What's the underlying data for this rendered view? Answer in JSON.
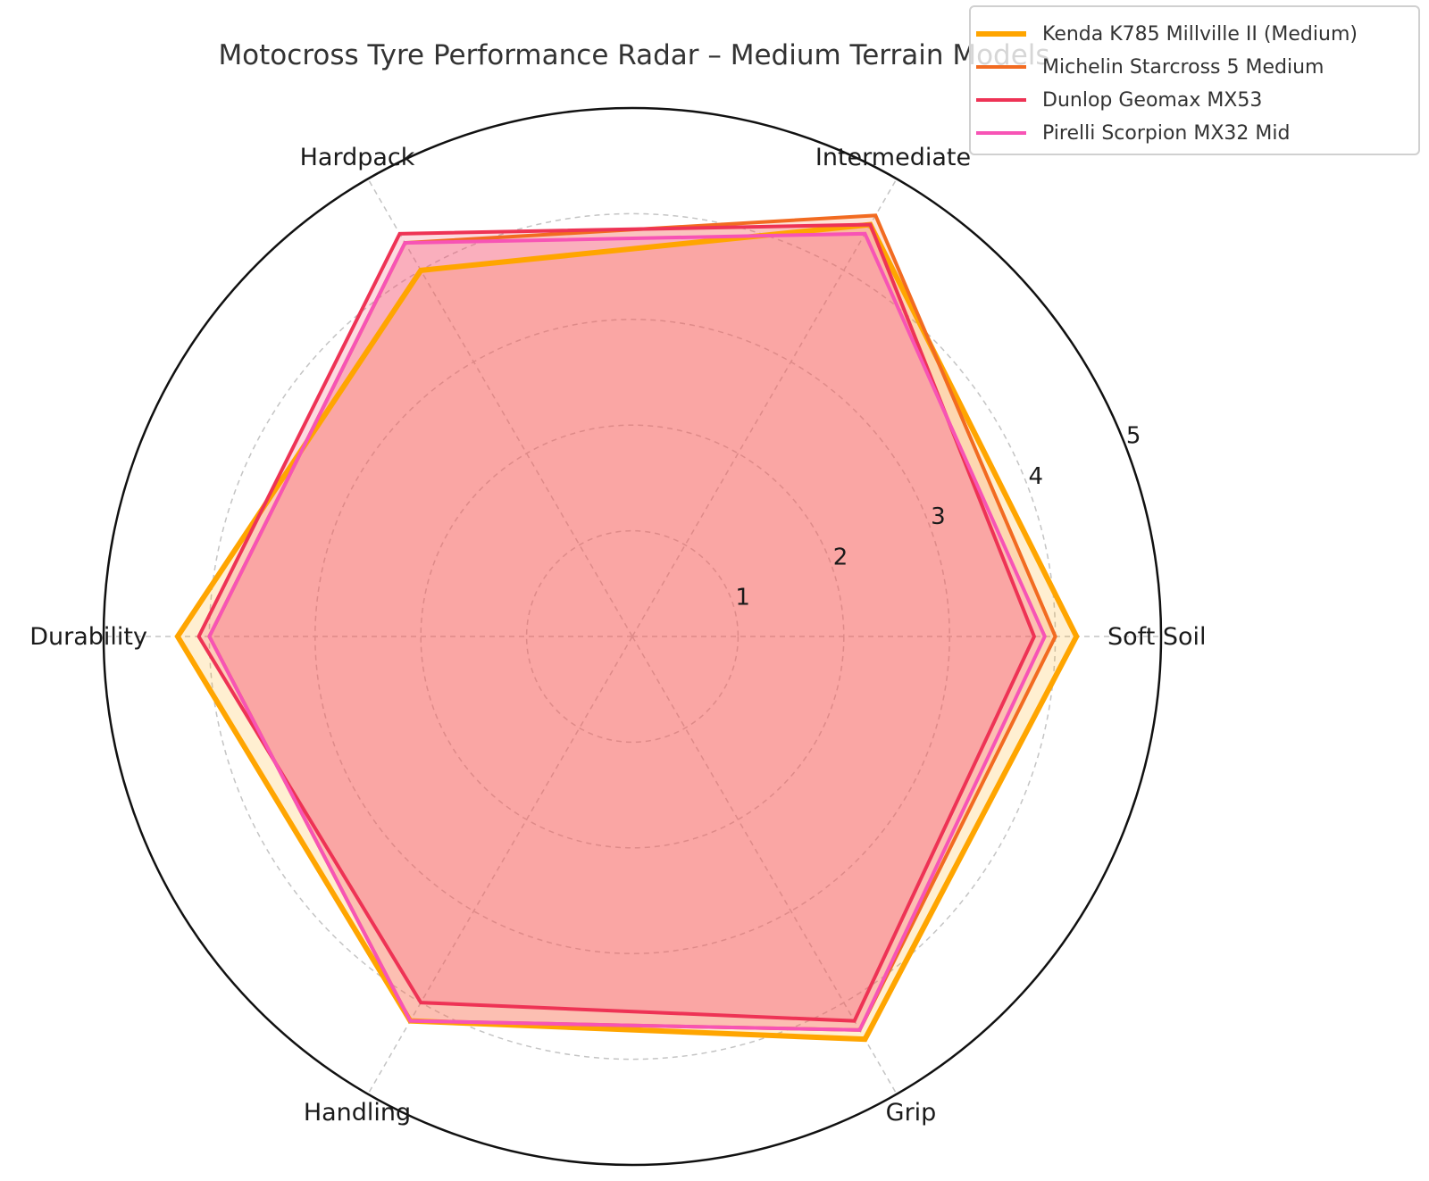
{
  "chart_data": {
    "type": "radar",
    "title": "Motocross Tyre Performance Radar – Medium Terrain Models",
    "categories": [
      "Soft Soil",
      "Intermediate",
      "Hardpack",
      "Durability",
      "Handling",
      "Grip"
    ],
    "radial_ticks": [
      1,
      2,
      3,
      4,
      5
    ],
    "rlim": [
      0,
      5
    ],
    "grid": true,
    "legend_position": "upper right",
    "series": [
      {
        "name": "Kenda K785 Millville II (Medium)",
        "color": "#FFA500",
        "values": [
          4.2,
          4.5,
          4.0,
          4.3,
          4.2,
          4.4
        ]
      },
      {
        "name": "Michelin Starcross 5 Medium",
        "color": "#F26B21",
        "values": [
          4.0,
          4.6,
          4.3,
          4.0,
          4.2,
          4.3
        ]
      },
      {
        "name": "Dunlop Geomax MX53",
        "color": "#EE3355",
        "values": [
          3.8,
          4.5,
          4.4,
          4.1,
          4.0,
          4.2
        ]
      },
      {
        "name": "Pirelli Scorpion MX32 Mid",
        "color": "#F754B5",
        "values": [
          3.9,
          4.4,
          4.3,
          4.0,
          4.2,
          4.3
        ]
      }
    ]
  }
}
